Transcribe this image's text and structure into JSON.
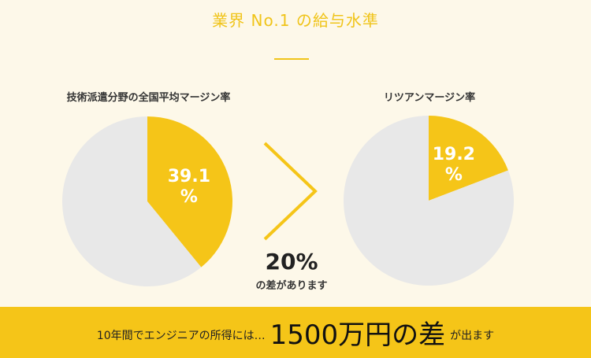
{
  "header": {
    "title": "業界 No.1 の給与水準"
  },
  "chart_data": [
    {
      "type": "pie",
      "title": "技術派遣分野の全国平均マージン率",
      "slices": [
        {
          "label": "39.1\n%",
          "value": 39.1,
          "color": "#f5c518"
        },
        {
          "label": "",
          "value": 60.9,
          "color": "#e8e8e8"
        }
      ]
    },
    {
      "type": "pie",
      "title": "リツアンマージン率",
      "slices": [
        {
          "label": "19.2\n%",
          "value": 19.2,
          "color": "#f5c518"
        },
        {
          "label": "",
          "value": 80.8,
          "color": "#e8e8e8"
        }
      ]
    }
  ],
  "comparison": {
    "value": "20%",
    "caption": "の差があります"
  },
  "banner": {
    "prefix": "10年間でエンジニアの所得には…",
    "highlight": "1500万円の差",
    "suffix": "が出ます"
  },
  "colors": {
    "accent": "#f5c518",
    "title": "#f0c419",
    "pie_rest": "#e8e8e8",
    "background": "#fdf8e9"
  },
  "icons": {
    "comparison_arrow": "chevron-right-icon"
  }
}
